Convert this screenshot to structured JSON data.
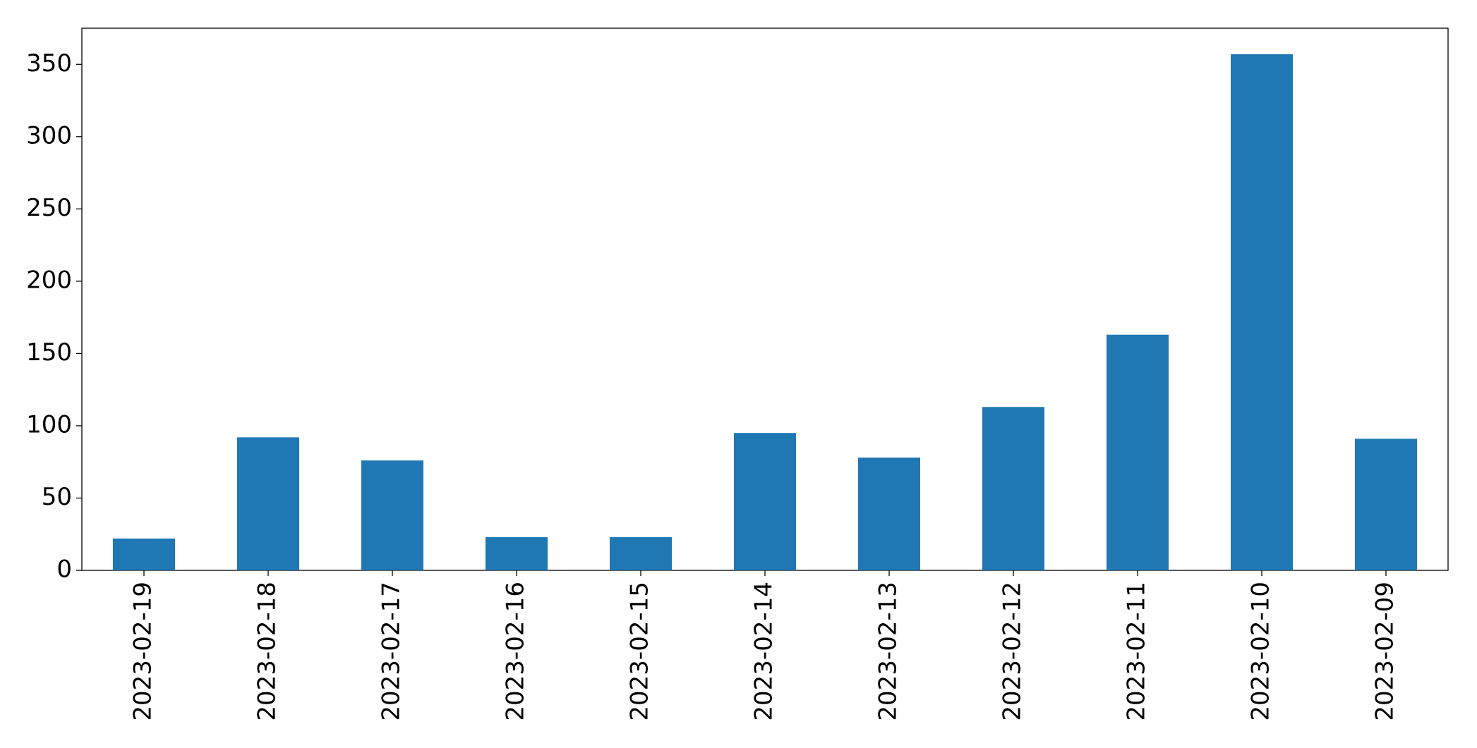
{
  "chart_data": {
    "type": "bar",
    "categories": [
      "2023-02-19",
      "2023-02-18",
      "2023-02-17",
      "2023-02-16",
      "2023-02-15",
      "2023-02-14",
      "2023-02-13",
      "2023-02-12",
      "2023-02-11",
      "2023-02-10",
      "2023-02-09"
    ],
    "values": [
      22,
      92,
      76,
      23,
      23,
      95,
      78,
      113,
      163,
      357,
      91
    ],
    "color": "#1f77b4",
    "ylim": [
      0,
      375
    ],
    "yticks": [
      0,
      50,
      100,
      150,
      200,
      250,
      300,
      350
    ],
    "grid": false
  }
}
